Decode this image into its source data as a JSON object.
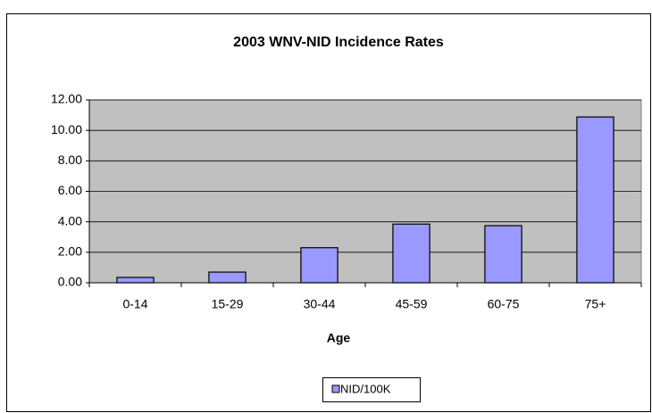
{
  "chart_data": {
    "type": "bar",
    "title": "2003 WNV-NID Incidence Rates",
    "x_label": "Age",
    "categories": [
      "0-14",
      "15-29",
      "30-44",
      "45-59",
      "60-75",
      "75+"
    ],
    "series": [
      {
        "name": "NID/100K",
        "color": "#9999ff",
        "values": [
          0.35,
          0.7,
          2.3,
          3.85,
          3.75,
          10.88
        ]
      }
    ],
    "ylim": [
      0,
      12
    ],
    "yticks": [
      {
        "value": 0,
        "label": "0.00"
      },
      {
        "value": 2,
        "label": "2.00"
      },
      {
        "value": 4,
        "label": "4.00"
      },
      {
        "value": 6,
        "label": "6.00"
      },
      {
        "value": 8,
        "label": "8.00"
      },
      {
        "value": 10,
        "label": "10.00"
      },
      {
        "value": 12,
        "label": "12.00"
      }
    ],
    "grid": true,
    "legend": "bottom"
  }
}
